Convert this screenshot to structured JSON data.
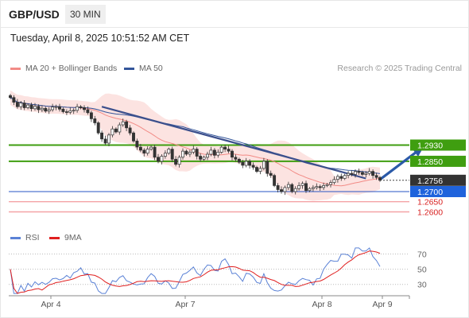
{
  "header": {
    "pair": "GBP/USD",
    "timeframe": "30 MIN",
    "datetime": "Tuesday, April 8, 2025 10:51:52 AM CET"
  },
  "legend": {
    "ma20": {
      "label": "MA 20 + Bollinger Bands",
      "color": "#f28b86"
    },
    "ma50": {
      "label": "MA 50",
      "color": "#33559a"
    },
    "credit": "Research © 2025 Trading Central"
  },
  "rsi_legend": {
    "rsi": {
      "label": "RSI",
      "color": "#5b82d6"
    },
    "ma9": {
      "label": "9MA",
      "color": "#e02020"
    }
  },
  "chart_data": {
    "type": "candlestick",
    "instrument": "GBP/USD",
    "interval": "30 MIN",
    "x_tick_labels": [
      "Apr 4",
      "Apr 7",
      "Apr 8",
      "Apr 9"
    ],
    "price_levels": [
      {
        "label": "1.2930",
        "value": 1.293,
        "kind": "resistance"
      },
      {
        "label": "1.2850",
        "value": 1.285,
        "kind": "resistance"
      },
      {
        "label": "1.2756",
        "value": 1.2756,
        "kind": "last"
      },
      {
        "label": "1.2700",
        "value": 1.27,
        "kind": "pivot"
      },
      {
        "label": "1.2650",
        "value": 1.265,
        "kind": "support"
      },
      {
        "label": "1.2600",
        "value": 1.26,
        "kind": "support"
      }
    ],
    "y_range_approx": [
      1.2535,
      1.3215
    ],
    "series_close_approx": [
      1.3165,
      1.3142,
      1.312,
      1.3138,
      1.3115,
      1.3128,
      1.311,
      1.3122,
      1.3105,
      1.3112,
      1.3098,
      1.3105,
      1.3118,
      1.312,
      1.3108,
      1.3095,
      1.3092,
      1.31,
      1.3102,
      1.312,
      1.3115,
      1.3105,
      1.309,
      1.306,
      1.304,
      1.299,
      1.296,
      1.294,
      1.298,
      1.301,
      1.2995,
      1.303,
      1.3045,
      1.3015,
      1.299,
      1.295,
      1.292,
      1.2905,
      1.289,
      1.291,
      1.292,
      1.287,
      1.285,
      1.2875,
      1.289,
      1.291,
      1.286,
      1.2835,
      1.287,
      1.29,
      1.2885,
      1.2895,
      1.291,
      1.2875,
      1.286,
      1.287,
      1.2885,
      1.2905,
      1.288,
      1.2895,
      1.292,
      1.291,
      1.29,
      1.287,
      1.286,
      1.2845,
      1.283,
      1.285,
      1.283,
      1.282,
      1.28,
      1.2815,
      1.285,
      1.279,
      1.278,
      1.273,
      1.271,
      1.27,
      1.272,
      1.2735,
      1.27,
      1.2715,
      1.273,
      1.274,
      1.2705,
      1.2715,
      1.272,
      1.2725,
      1.272,
      1.273,
      1.2735,
      1.2745,
      1.276,
      1.2775,
      1.2765,
      1.278,
      1.279,
      1.2785,
      1.28,
      1.2795,
      1.2785,
      1.279,
      1.28,
      1.278,
      1.277,
      1.2756
    ],
    "trendlines": [
      {
        "name": "falling",
        "from_index": 26,
        "from_price": 1.312,
        "to_index": 101,
        "to_price": 1.2765
      },
      {
        "name": "forecast-arrow",
        "from_index": 105,
        "from_price": 1.276,
        "to_index": 117,
        "to_price": 1.2918
      }
    ],
    "rsi": {
      "axis_levels": [
        70,
        50,
        30
      ]
    }
  }
}
